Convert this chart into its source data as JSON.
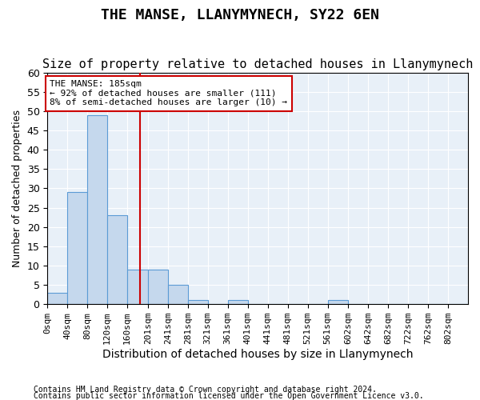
{
  "title": "THE MANSE, LLANYMYNECH, SY22 6EN",
  "subtitle": "Size of property relative to detached houses in Llanymynech",
  "xlabel": "Distribution of detached houses by size in Llanymynech",
  "ylabel": "Number of detached properties",
  "footnote1": "Contains HM Land Registry data © Crown copyright and database right 2024.",
  "footnote2": "Contains public sector information licensed under the Open Government Licence v3.0.",
  "bin_labels": [
    "0sqm",
    "40sqm",
    "80sqm",
    "120sqm",
    "160sqm",
    "201sqm",
    "241sqm",
    "281sqm",
    "321sqm",
    "361sqm",
    "401sqm",
    "441sqm",
    "481sqm",
    "521sqm",
    "561sqm",
    "602sqm",
    "642sqm",
    "682sqm",
    "722sqm",
    "762sqm",
    "802sqm"
  ],
  "bar_values": [
    3,
    29,
    49,
    23,
    9,
    9,
    5,
    1,
    0,
    1,
    0,
    0,
    0,
    0,
    1,
    0,
    0,
    0,
    0,
    0,
    0
  ],
  "bar_color": "#c5d8ed",
  "bar_edge_color": "#5b9bd5",
  "vline_x": 185,
  "bin_edges": [
    0,
    40,
    80,
    120,
    160,
    201,
    241,
    281,
    321,
    361,
    401,
    441,
    481,
    521,
    561,
    602,
    642,
    682,
    722,
    762,
    802
  ],
  "xlim_max": 842,
  "ylim": [
    0,
    60
  ],
  "yticks": [
    0,
    5,
    10,
    15,
    20,
    25,
    30,
    35,
    40,
    45,
    50,
    55,
    60
  ],
  "annotation_title": "THE MANSE: 185sqm",
  "annotation_line1": "← 92% of detached houses are smaller (111)",
  "annotation_line2": "8% of semi-detached houses are larger (10) →",
  "annotation_box_color": "#ffffff",
  "annotation_box_edge": "#cc0000",
  "vline_color": "#cc0000",
  "background_color": "#e8f0f8",
  "title_fontsize": 13,
  "subtitle_fontsize": 11
}
